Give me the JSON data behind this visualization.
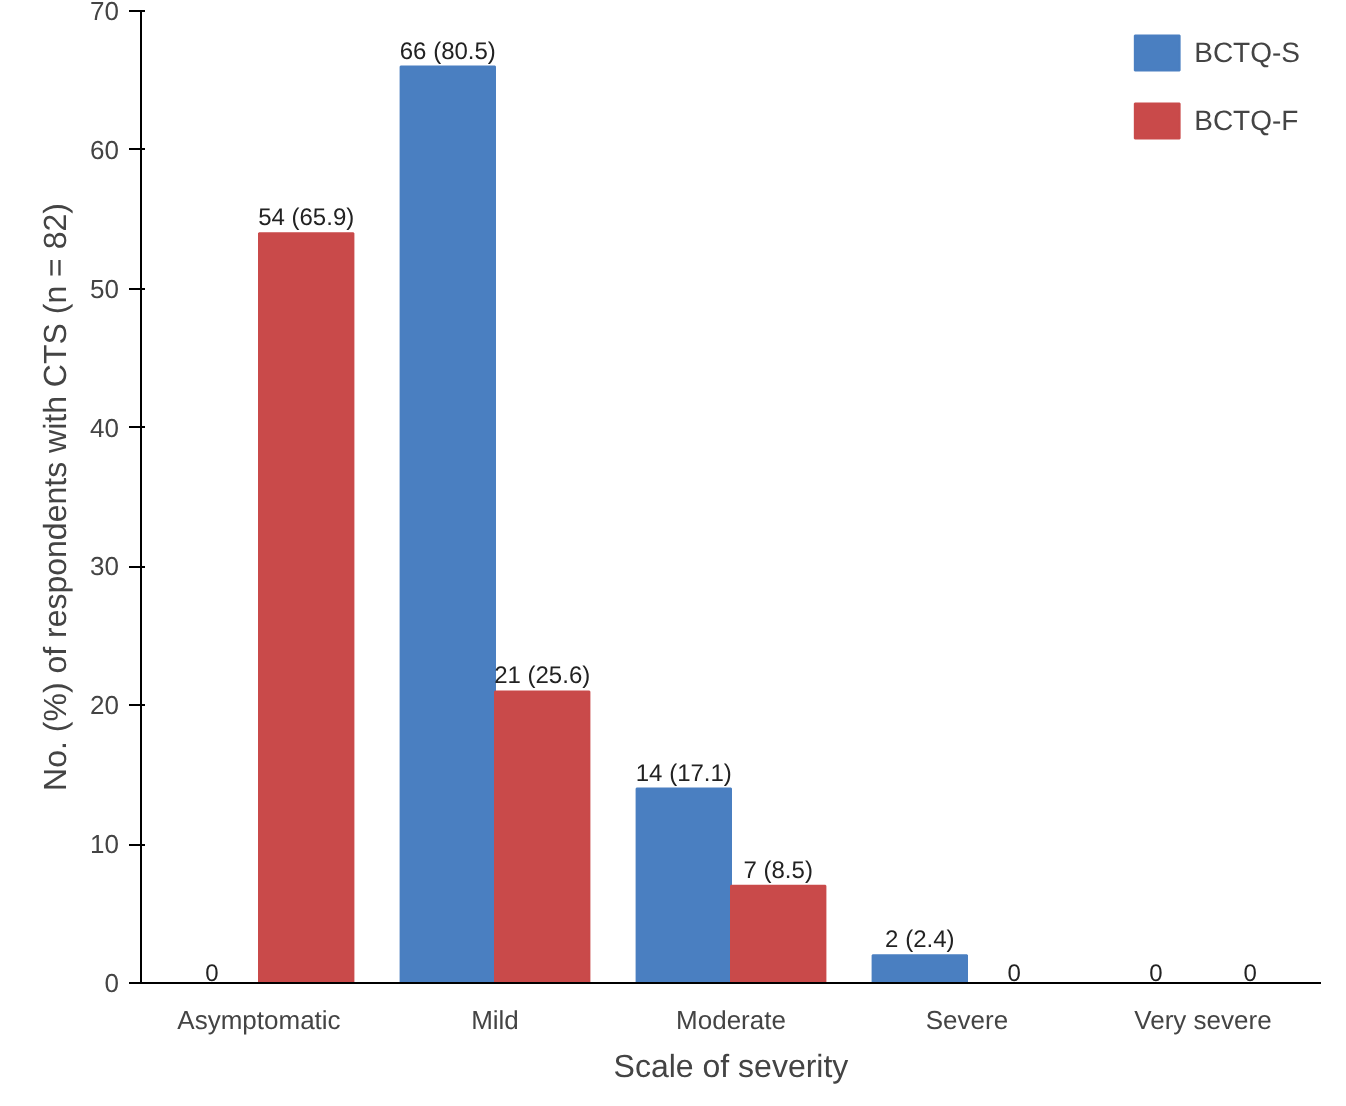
{
  "chart_data": {
    "type": "bar",
    "xlabel": "Scale of severity",
    "ylabel": "No. (%) of respondents with CTS (n = 82)",
    "categories": [
      "Asymptomatic",
      "Mild",
      "Moderate",
      "Severe",
      "Very severe"
    ],
    "series": [
      {
        "name": "BCTQ-S",
        "color": "#4a7fc1",
        "values": [
          0,
          66,
          14,
          2,
          0
        ],
        "value_labels": [
          "0",
          "66 (80.5)",
          "14 (17.1)",
          "2 (2.4)",
          "0"
        ]
      },
      {
        "name": "BCTQ-F",
        "color": "#c94a4a",
        "values": [
          54,
          21,
          7,
          0,
          0
        ],
        "value_labels": [
          "54 (65.9)",
          "21 (25.6)",
          "7 (8.5)",
          "0",
          "0"
        ]
      }
    ],
    "ylim": [
      0,
      70
    ],
    "yticks": [
      0,
      10,
      20,
      30,
      40,
      50,
      60,
      70
    ],
    "grid": false,
    "legend": "top right"
  }
}
